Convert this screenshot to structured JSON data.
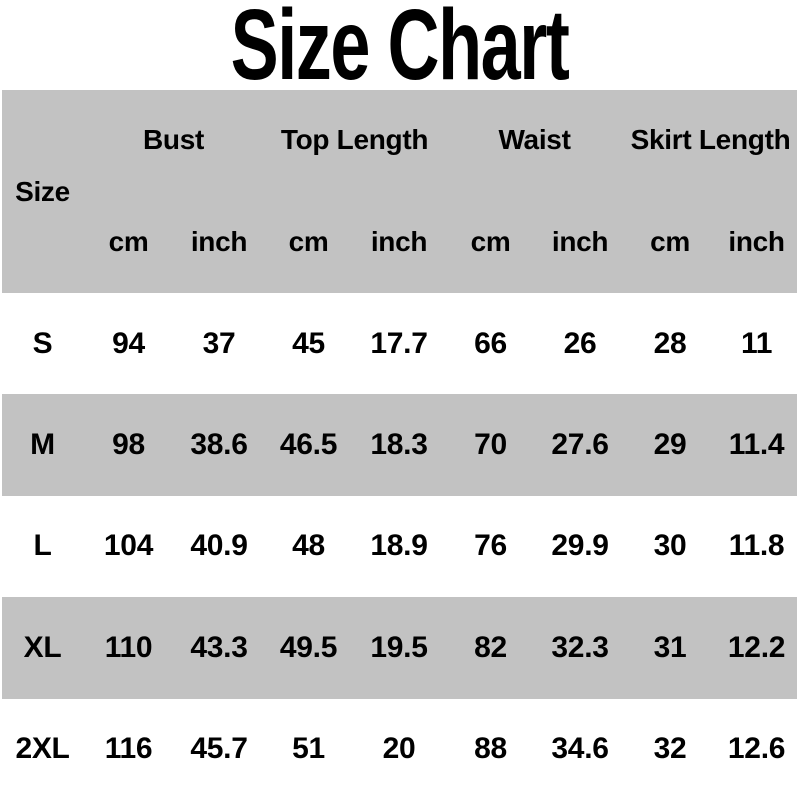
{
  "title": "Size Chart",
  "colors": {
    "background": "#ffffff",
    "row_shade": "#c2c2c2",
    "row_white": "#ffffff",
    "text": "#000000"
  },
  "chart_data": {
    "type": "table",
    "title": "Size Chart",
    "size_column_header": "Size",
    "column_groups": [
      "Bust",
      "Top Length",
      "Waist",
      "Skirt Length"
    ],
    "unit_headers": [
      "cm",
      "inch",
      "cm",
      "inch",
      "cm",
      "inch",
      "cm",
      "inch"
    ],
    "rows": [
      {
        "size": "S",
        "values": [
          "94",
          "37",
          "45",
          "17.7",
          "66",
          "26",
          "28",
          "11"
        ]
      },
      {
        "size": "M",
        "values": [
          "98",
          "38.6",
          "46.5",
          "18.3",
          "70",
          "27.6",
          "29",
          "11.4"
        ]
      },
      {
        "size": "L",
        "values": [
          "104",
          "40.9",
          "48",
          "18.9",
          "76",
          "29.9",
          "30",
          "11.8"
        ]
      },
      {
        "size": "XL",
        "values": [
          "110",
          "43.3",
          "49.5",
          "19.5",
          "82",
          "32.3",
          "31",
          "12.2"
        ]
      },
      {
        "size": "2XL",
        "values": [
          "116",
          "45.7",
          "51",
          "20",
          "88",
          "34.6",
          "32",
          "12.6"
        ]
      }
    ],
    "layout": {
      "header_background": "#c2c2c2",
      "zebra_rows": true,
      "grid_lines": false
    }
  }
}
